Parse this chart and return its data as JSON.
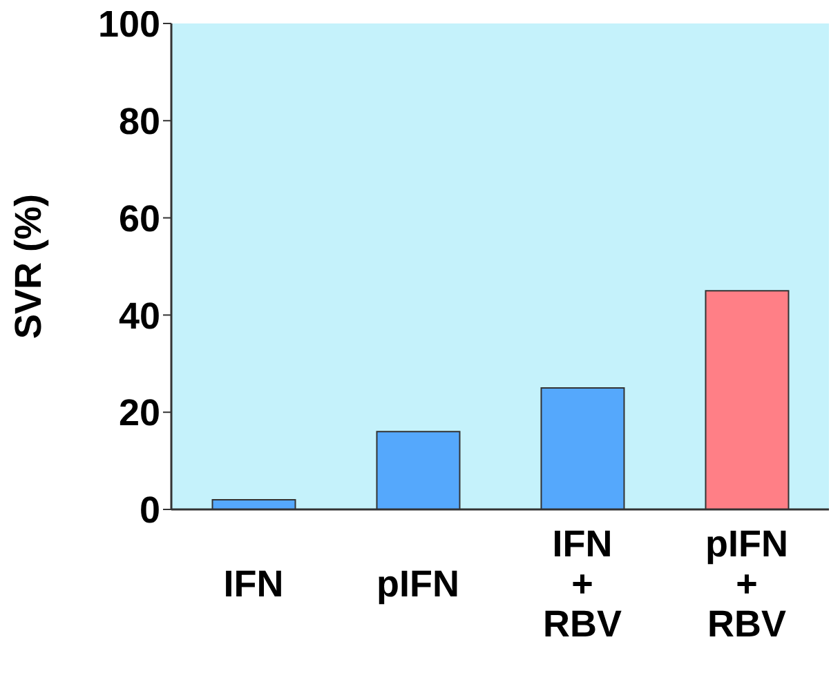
{
  "chart_data": {
    "type": "bar",
    "ylabel": "SVR (%)",
    "categories": [
      "IFN",
      "pIFN",
      "IFN + RBV",
      "pIFN + RBV"
    ],
    "values": [
      2,
      16,
      25,
      45
    ],
    "colors": [
      "#55a8fc",
      "#55a8fc",
      "#55a8fc",
      "#ff7f86"
    ],
    "ylim": [
      0,
      100
    ],
    "yticks": [
      0,
      20,
      40,
      60,
      80,
      100
    ],
    "grid": false
  }
}
